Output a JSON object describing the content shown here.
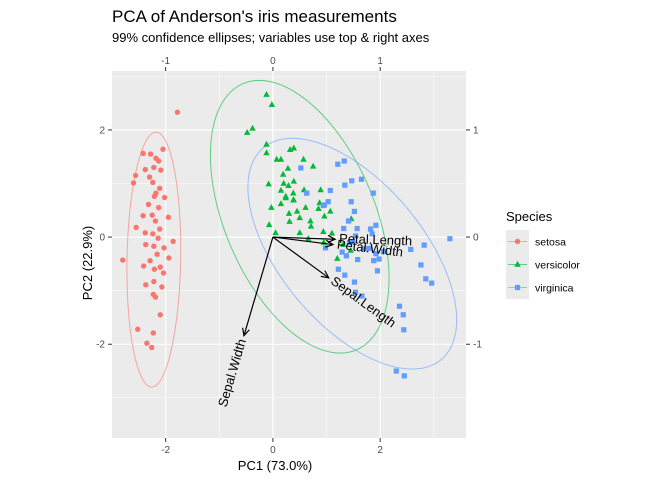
{
  "chart_data": {
    "type": "scatter",
    "title": "PCA of Anderson's iris measurements",
    "subtitle": "99% confidence ellipses; variables use top & right axes",
    "xlabel": "PC1 (73.0%)",
    "ylabel": "PC2 (22.9%)",
    "xlim": [
      -3.0,
      3.6
    ],
    "ylim": [
      -3.75,
      3.1
    ],
    "x_ticks": [
      -2,
      0,
      2
    ],
    "y_ticks": [
      -2,
      0,
      2
    ],
    "top_ticks": [
      -1,
      0,
      1
    ],
    "right_ticks": [
      -1,
      0,
      1
    ],
    "secondary_scale": 2,
    "legend": {
      "title": "Species",
      "entries": [
        "setosa",
        "versicolor",
        "virginica"
      ],
      "position": "right"
    },
    "colors": {
      "setosa": "#F8766D",
      "versicolor": "#00BA38",
      "virginica": "#619CFF",
      "panel": "#EBEBEB",
      "grid": "#FFFFFF",
      "arrow": "#000000"
    },
    "series": [
      {
        "name": "setosa",
        "marker": "circle",
        "ellipse": {
          "cx": -2.22,
          "cy": -0.42,
          "rx": 0.5,
          "ry": 2.38,
          "angle_deg": -1
        },
        "points": [
          [
            -1.78,
            2.33
          ],
          [
            -2.05,
            1.64
          ],
          [
            -2.42,
            1.56
          ],
          [
            -2.28,
            1.55
          ],
          [
            -2.18,
            1.47
          ],
          [
            -2.13,
            1.42
          ],
          [
            -2.22,
            1.3
          ],
          [
            -2.38,
            1.26
          ],
          [
            -2.09,
            1.25
          ],
          [
            -2.56,
            1.15
          ],
          [
            -2.3,
            1.12
          ],
          [
            -2.6,
            1.01
          ],
          [
            -2.24,
            1.02
          ],
          [
            -2.11,
            0.91
          ],
          [
            -2.18,
            0.82
          ],
          [
            -2.21,
            0.76
          ],
          [
            -2.02,
            0.74
          ],
          [
            -2.32,
            0.61
          ],
          [
            -2.13,
            0.55
          ],
          [
            -2.25,
            0.41
          ],
          [
            -2.42,
            0.4
          ],
          [
            -1.95,
            0.37
          ],
          [
            -2.19,
            0.3
          ],
          [
            -2.55,
            0.18
          ],
          [
            -2.11,
            0.15
          ],
          [
            -2.38,
            0.08
          ],
          [
            -2.24,
            0.06
          ],
          [
            -2.14,
            -0.02
          ],
          [
            -1.86,
            -0.08
          ],
          [
            -2.37,
            -0.14
          ],
          [
            -2.22,
            -0.17
          ],
          [
            -2.03,
            -0.2
          ],
          [
            -2.16,
            -0.32
          ],
          [
            -1.94,
            -0.39
          ],
          [
            -2.29,
            -0.44
          ],
          [
            -2.41,
            -0.54
          ],
          [
            -2.1,
            -0.56
          ],
          [
            -2.21,
            -0.6
          ],
          [
            -2.04,
            -0.67
          ],
          [
            -2.22,
            -0.83
          ],
          [
            -2.37,
            -0.89
          ],
          [
            -2.07,
            -0.93
          ],
          [
            -2.23,
            -1.07
          ],
          [
            -2.19,
            -1.12
          ],
          [
            -2.1,
            -1.45
          ],
          [
            -2.52,
            -1.72
          ],
          [
            -2.23,
            -1.79
          ],
          [
            -2.35,
            -1.98
          ],
          [
            -2.26,
            -2.06
          ],
          [
            -2.8,
            -0.43
          ]
        ]
      },
      {
        "name": "versicolor",
        "marker": "triangle",
        "ellipse": {
          "cx": 0.5,
          "cy": 0.38,
          "rx": 1.4,
          "ry": 2.7,
          "angle_deg": 23
        },
        "points": [
          [
            -0.12,
            2.66
          ],
          [
            -0.02,
            2.47
          ],
          [
            -0.38,
            2.03
          ],
          [
            -0.48,
            1.95
          ],
          [
            -0.12,
            1.73
          ],
          [
            -0.12,
            1.57
          ],
          [
            0.07,
            1.45
          ],
          [
            0.39,
            1.66
          ],
          [
            0.32,
            1.63
          ],
          [
            0.15,
            1.45
          ],
          [
            0.57,
            1.45
          ],
          [
            0.75,
            1.32
          ],
          [
            0.28,
            1.28
          ],
          [
            0.19,
            1.17
          ],
          [
            0.39,
            1.04
          ],
          [
            0.2,
            1.0
          ],
          [
            0.29,
            0.96
          ],
          [
            -0.08,
            0.99
          ],
          [
            0.15,
            0.87
          ],
          [
            0.58,
            0.88
          ],
          [
            0.89,
            0.88
          ],
          [
            0.38,
            0.82
          ],
          [
            0.24,
            0.76
          ],
          [
            0.39,
            0.69
          ],
          [
            0.15,
            0.62
          ],
          [
            -0.03,
            0.55
          ],
          [
            0.61,
            0.55
          ],
          [
            0.85,
            0.53
          ],
          [
            1.07,
            0.48
          ],
          [
            0.5,
            0.36
          ],
          [
            0.31,
            0.29
          ],
          [
            -0.07,
            0.23
          ],
          [
            1.46,
            0.34
          ],
          [
            0.71,
            0.2
          ],
          [
            0.94,
            0.1
          ],
          [
            0.95,
            -0.1
          ],
          [
            1.31,
            -0.14
          ],
          [
            1.45,
            -0.25
          ],
          [
            1.2,
            -0.4
          ],
          [
            0.7,
            0.3
          ],
          [
            0.96,
            0.39
          ],
          [
            0.3,
            0.44
          ],
          [
            0.87,
            0.64
          ],
          [
            0.05,
            0.08
          ],
          [
            0.5,
            0.08
          ],
          [
            0.38,
            0.69
          ],
          [
            0.45,
            0.48
          ],
          [
            1.1,
            0.07
          ],
          [
            0.66,
            -0.03
          ],
          [
            0.24,
            0.73
          ]
        ]
      },
      {
        "name": "virginica",
        "marker": "square",
        "ellipse": {
          "cx": 1.48,
          "cy": -0.31,
          "rx": 1.33,
          "ry": 2.58,
          "angle_deg": 40
        },
        "points": [
          [
            3.3,
            -0.03
          ],
          [
            2.82,
            -0.15
          ],
          [
            2.57,
            -0.23
          ],
          [
            2.76,
            -0.52
          ],
          [
            2.85,
            -0.78
          ],
          [
            2.96,
            -0.86
          ],
          [
            1.88,
            -0.44
          ],
          [
            1.98,
            -0.41
          ],
          [
            1.58,
            -0.42
          ],
          [
            1.37,
            -0.35
          ],
          [
            1.43,
            -0.1
          ],
          [
            1.29,
            -0.28
          ],
          [
            1.92,
            0.22
          ],
          [
            1.85,
            0.06
          ],
          [
            1.92,
            -0.31
          ],
          [
            1.8,
            -0.21
          ],
          [
            1.71,
            -0.22
          ],
          [
            1.49,
            -0.09
          ],
          [
            2.06,
            -0.27
          ],
          [
            1.54,
            0.02
          ],
          [
            1.32,
            0.16
          ],
          [
            1.57,
            0.16
          ],
          [
            1.82,
            0.15
          ],
          [
            1.41,
            0.3
          ],
          [
            1.52,
            0.48
          ],
          [
            1.46,
            0.66
          ],
          [
            1.87,
            0.82
          ],
          [
            1.34,
            0.97
          ],
          [
            1.21,
            1.36
          ],
          [
            1.33,
            1.42
          ],
          [
            1.47,
            1.05
          ],
          [
            1.65,
            1.08
          ],
          [
            1.07,
            0.87
          ],
          [
            1.03,
            0.66
          ],
          [
            0.94,
            0.59
          ],
          [
            0.96,
            0.6
          ],
          [
            0.52,
            1.29
          ],
          [
            0.63,
            0.82
          ],
          [
            1.22,
            -0.6
          ],
          [
            1.34,
            -0.71
          ],
          [
            0.98,
            -0.2
          ],
          [
            1.95,
            -0.63
          ],
          [
            1.52,
            -0.84
          ],
          [
            1.54,
            -1.03
          ],
          [
            1.66,
            -1.1
          ],
          [
            2.36,
            -1.29
          ],
          [
            2.43,
            -1.45
          ],
          [
            2.44,
            -1.73
          ],
          [
            2.3,
            -2.5
          ],
          [
            2.45,
            -2.59
          ]
        ]
      }
    ],
    "variables": [
      {
        "name": "Sepal.Length",
        "x": 0.52,
        "y": -0.38
      },
      {
        "name": "Sepal.Width",
        "x": -0.27,
        "y": -0.92
      },
      {
        "name": "Petal.Length",
        "x": 0.58,
        "y": -0.02
      },
      {
        "name": "Petal.Width",
        "x": 0.56,
        "y": -0.07
      }
    ]
  }
}
